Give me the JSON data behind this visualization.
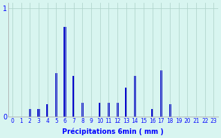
{
  "xlabel": "Précipitations 6min ( mm )",
  "ylabel": "",
  "background_color": "#d8f5f0",
  "bar_color": "#0000cc",
  "grid_color": "#b0d4cc",
  "ylim": [
    0,
    1.05
  ],
  "xlim": [
    -0.5,
    23.5
  ],
  "yticks": [
    0,
    1
  ],
  "xticks": [
    0,
    1,
    2,
    3,
    4,
    5,
    6,
    7,
    8,
    9,
    10,
    11,
    12,
    13,
    14,
    15,
    16,
    17,
    18,
    19,
    20,
    21,
    22,
    23
  ],
  "values": [
    0.0,
    0.0,
    0.07,
    0.07,
    0.12,
    0.4,
    0.83,
    0.38,
    0.13,
    0.0,
    0.13,
    0.13,
    0.13,
    0.27,
    0.38,
    0.0,
    0.07,
    0.43,
    0.12,
    0.0,
    0.0,
    0.0,
    0.0,
    0.0
  ],
  "bar_width": 0.25,
  "tick_fontsize": 5.5,
  "xlabel_fontsize": 7,
  "ylabel_fontsize": 7,
  "ytick_fontsize": 7
}
